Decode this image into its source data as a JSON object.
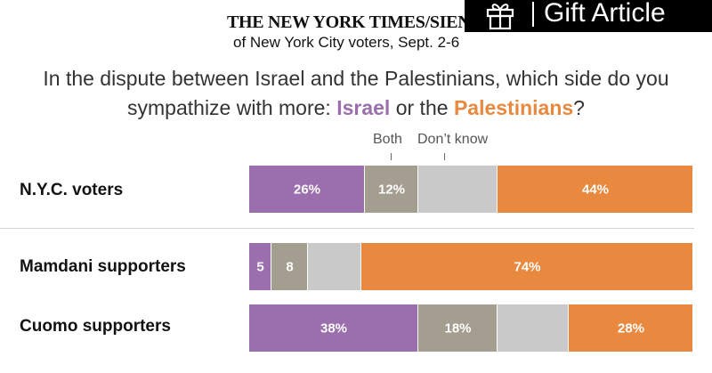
{
  "header": {
    "poll_title": "THE NEW YORK TIMES/SIENA POLL",
    "poll_subtitle": "of New York City voters, Sept. 2-6"
  },
  "gift": {
    "label": "Gift Article",
    "icon": "gift-icon"
  },
  "question": {
    "part1": "In the dispute between Israel and the Palestinians, which side do you sympathize with more: ",
    "israel": "Israel",
    "middle": " or the ",
    "palestinians": "Palestinians",
    "end": "?"
  },
  "colors": {
    "israel": "#9b6ead",
    "both": "#a39e8f",
    "dont_know": "#c9c9c9",
    "palestinians": "#e8893f"
  },
  "chart_data": {
    "type": "bar",
    "orientation": "horizontal-stacked-100",
    "title": "In the dispute between Israel and the Palestinians, which side do you sympathize with more: Israel or the Palestinians?",
    "series_names": [
      "Israel",
      "Both",
      "Don’t know",
      "Palestinians"
    ],
    "header_labels": {
      "both": "Both",
      "dont_know": "Don’t know"
    },
    "rows": [
      {
        "label": "N.Y.C. voters",
        "values": [
          26,
          12,
          18,
          44
        ],
        "labels": [
          "26%",
          "12%",
          "",
          "44%"
        ]
      },
      {
        "label": "Mamdani supporters",
        "values": [
          5,
          8,
          12,
          74
        ],
        "labels": [
          "5",
          "8",
          "",
          "74%"
        ]
      },
      {
        "label": "Cuomo supporters",
        "values": [
          38,
          18,
          16,
          28
        ],
        "labels": [
          "38%",
          "18%",
          "",
          "28%"
        ]
      }
    ]
  }
}
